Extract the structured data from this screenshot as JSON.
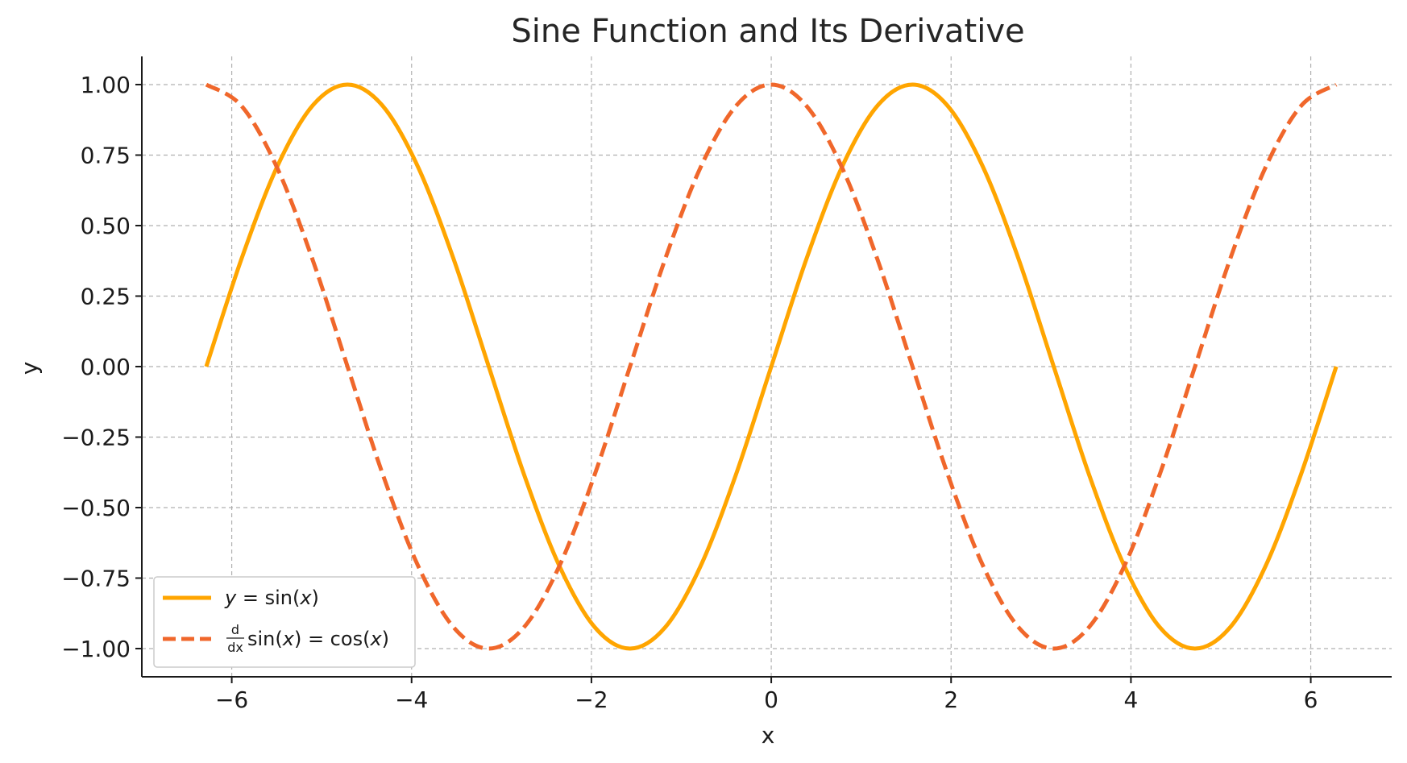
{
  "chart_data": {
    "type": "line",
    "title": "Sine Function and Its Derivative",
    "xlabel": "x",
    "ylabel": "y",
    "xlim": [
      -7,
      6.9
    ],
    "ylim": [
      -1.1,
      1.1
    ],
    "x_ticks": [
      -6,
      -4,
      -2,
      0,
      2,
      4,
      6
    ],
    "x_tick_labels": [
      "−6",
      "−4",
      "−2",
      "0",
      "2",
      "4",
      "6"
    ],
    "y_ticks": [
      1.0,
      0.75,
      0.5,
      0.25,
      0.0,
      -0.25,
      -0.5,
      -0.75,
      -1.0
    ],
    "y_tick_labels": [
      "1.00",
      "0.75",
      "0.50",
      "0.25",
      "0.00",
      "−0.25",
      "−0.50",
      "−0.75",
      "−1.00"
    ],
    "grid": true,
    "legend_position": "lower-left",
    "x": [
      -6.2832,
      -5.8905,
      -5.4978,
      -5.1051,
      -4.7124,
      -4.3197,
      -3.927,
      -3.5343,
      -3.1416,
      -2.7489,
      -2.3562,
      -1.9635,
      -1.5708,
      -1.1781,
      -0.7854,
      -0.3927,
      0.0,
      0.3927,
      0.7854,
      1.1781,
      1.5708,
      1.9635,
      2.3562,
      2.7489,
      3.1416,
      3.5343,
      3.927,
      4.3197,
      4.7124,
      5.1051,
      5.4978,
      5.8905,
      6.2832
    ],
    "series": [
      {
        "name": "y = sin(x)",
        "style": "solid",
        "color": "#FFA500",
        "values": [
          0.0,
          0.383,
          0.707,
          0.924,
          1.0,
          0.924,
          0.707,
          0.383,
          0.0,
          -0.383,
          -0.707,
          -0.924,
          -1.0,
          -0.924,
          -0.707,
          -0.383,
          0.0,
          0.383,
          0.707,
          0.924,
          1.0,
          0.924,
          0.707,
          0.383,
          0.0,
          -0.383,
          -0.707,
          -0.924,
          -1.0,
          -0.924,
          -0.707,
          -0.383,
          0.0
        ]
      },
      {
        "name": "d/dx sin(x) = cos(x)",
        "style": "dashed",
        "color": "#F0672B",
        "values": [
          1.0,
          0.924,
          0.707,
          0.383,
          0.0,
          -0.383,
          -0.707,
          -0.924,
          -1.0,
          -0.924,
          -0.707,
          -0.383,
          0.0,
          0.383,
          0.707,
          0.924,
          1.0,
          0.924,
          0.707,
          0.383,
          0.0,
          -0.383,
          -0.707,
          -0.924,
          -1.0,
          -0.924,
          -0.707,
          -0.383,
          0.0,
          0.383,
          0.707,
          0.924,
          1.0
        ]
      }
    ],
    "legend": {
      "sin_y": "y",
      "sin_eq": " = sin(",
      "sin_x": "x",
      "sin_close": ")",
      "cos_d": "d",
      "cos_dx": "dx",
      "cos_sin": "sin(",
      "cos_x1": "x",
      "cos_mid": ") = cos(",
      "cos_x2": "x",
      "cos_close": ")"
    }
  }
}
